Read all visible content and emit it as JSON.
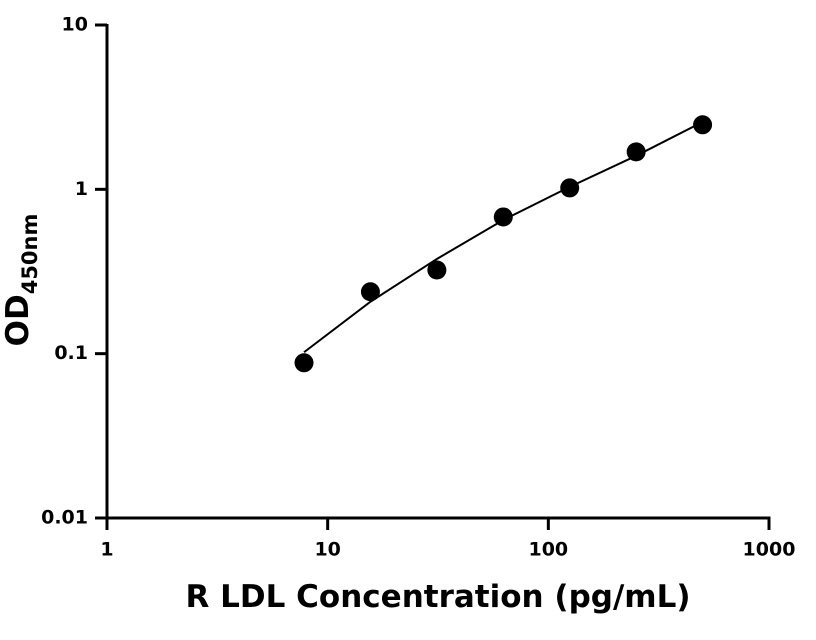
{
  "chart_data": {
    "type": "scatter",
    "x_label": "R LDL Concentration (pg/mL)",
    "y_label": "OD",
    "y_label_sub": "450nm",
    "x": [
      7.8125,
      15.625,
      31.25,
      62.5,
      125,
      250,
      500
    ],
    "series": [
      {
        "type": "scatter",
        "color": "#000000",
        "values": [
          0.088,
          0.238,
          0.323,
          0.679,
          1.02,
          1.69,
          2.47
        ]
      },
      {
        "type": "line",
        "color": "#000000",
        "values": [
          0.102,
          0.207,
          0.377,
          0.651,
          1.035,
          1.6,
          2.57
        ]
      }
    ],
    "xlim": [
      1,
      1000
    ],
    "ylim": [
      0.01,
      10
    ],
    "xticks": [
      1,
      10,
      100,
      1000
    ],
    "yticks": [
      0.01,
      0.1,
      1,
      10
    ],
    "xscale": "log",
    "yscale": "log"
  }
}
